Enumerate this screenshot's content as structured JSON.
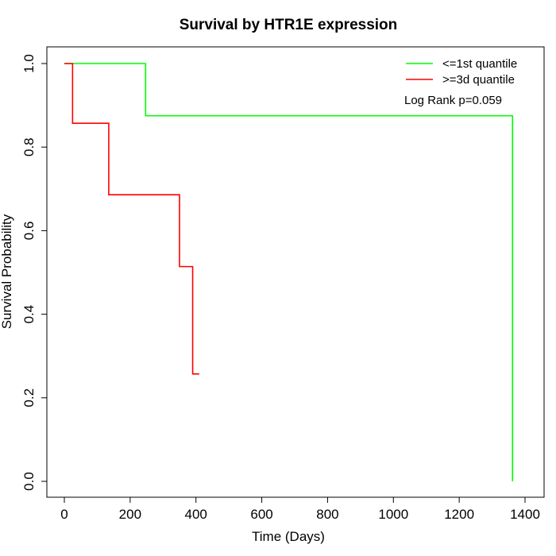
{
  "chart_data": {
    "type": "line",
    "title": "Survival by HTR1E expression",
    "xlabel": "Time (Days)",
    "ylabel": "Survival Probability",
    "xlim": [
      0,
      1400
    ],
    "ylim": [
      0,
      1
    ],
    "xticks": [
      0,
      200,
      400,
      600,
      800,
      1000,
      1200,
      1400
    ],
    "yticks": [
      0.0,
      0.2,
      0.4,
      0.6,
      0.8,
      1.0
    ],
    "xtick_labels": [
      "0",
      "200",
      "400",
      "600",
      "800",
      "1000",
      "1200",
      "1400"
    ],
    "ytick_labels": [
      "0.0",
      "0.2",
      "0.4",
      "0.6",
      "0.8",
      "1.0"
    ],
    "grid": false,
    "legend_position": "top-right",
    "annotation": "Log Rank p=0.059",
    "series": [
      {
        "name": "<=1st quantile",
        "color": "#00ff00",
        "step": true,
        "x": [
          0,
          247,
          1362,
          1362
        ],
        "y": [
          1.0,
          0.875,
          0.0,
          0.0
        ]
      },
      {
        "name": ">=3d quantile",
        "color": "#ff0000",
        "step": true,
        "x": [
          0,
          25,
          135,
          350,
          390,
          410
        ],
        "y": [
          1.0,
          0.857,
          0.686,
          0.514,
          0.257,
          0.257
        ]
      }
    ]
  }
}
